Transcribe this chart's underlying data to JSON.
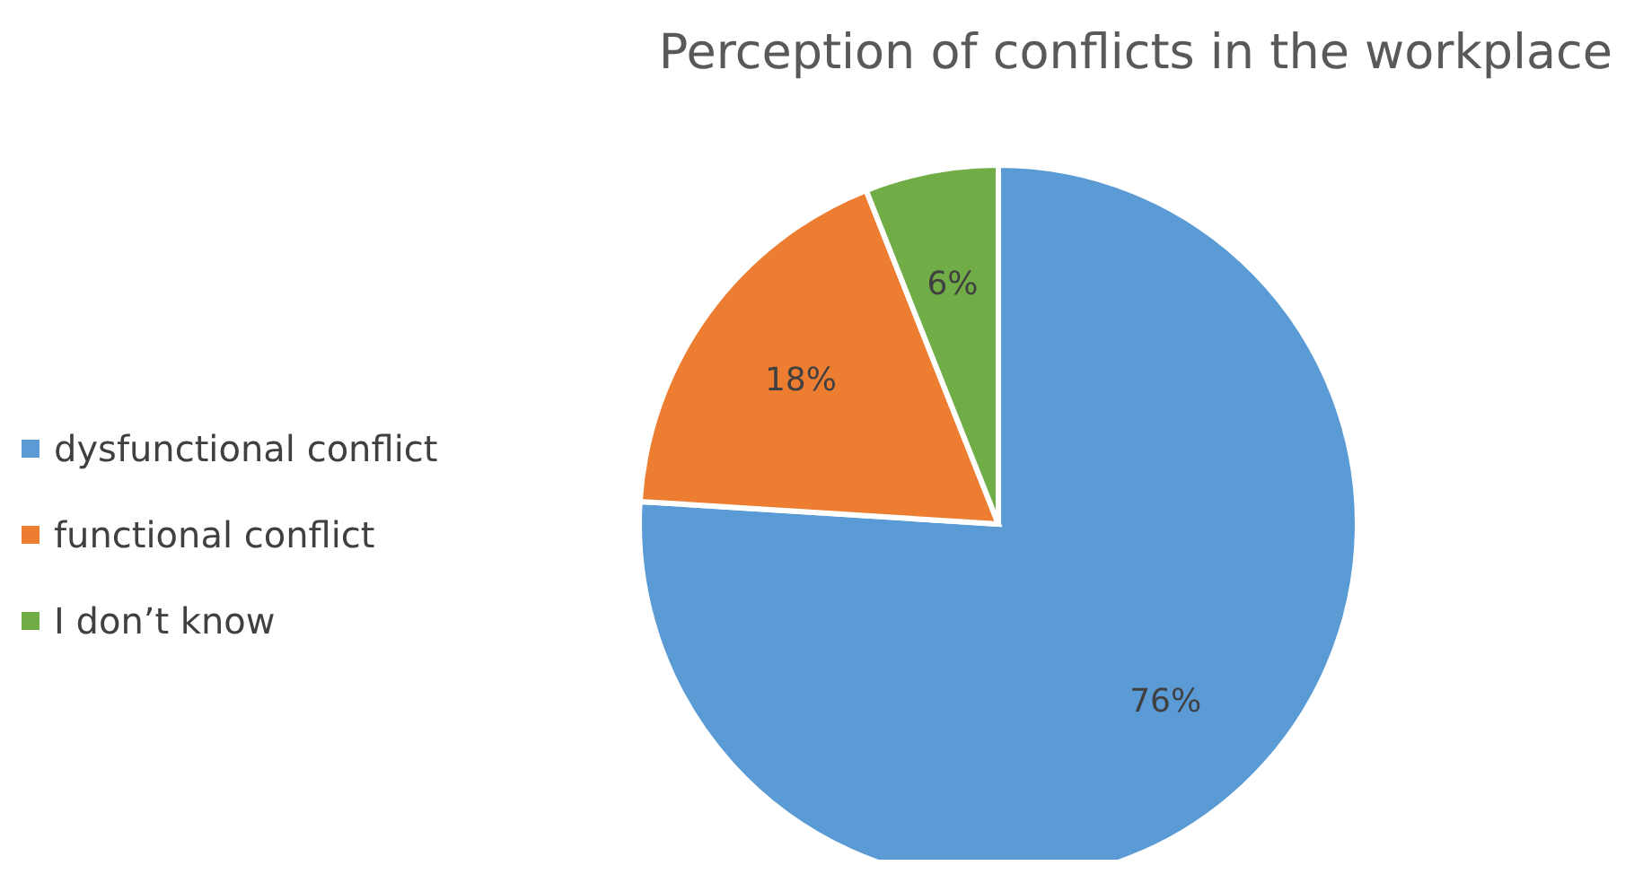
{
  "chart_data": {
    "type": "pie",
    "title": "Perception of conflicts in the workplace",
    "categories": [
      "dysfunctional conflict",
      "functional conflict",
      "I don’t know"
    ],
    "values": [
      76,
      18,
      6
    ],
    "colors": [
      "#5b9bd5",
      "#ed7d31",
      "#70ad47"
    ],
    "value_labels": [
      "76%",
      "18%",
      "6%"
    ],
    "legend": "left"
  }
}
